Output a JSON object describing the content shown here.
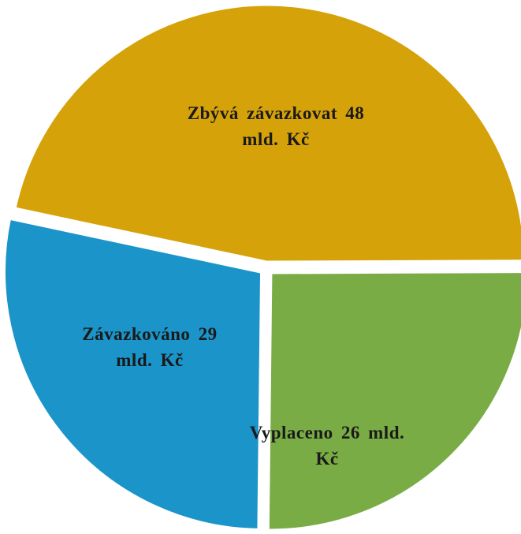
{
  "chart_data": {
    "type": "pie",
    "values": [
      48,
      26,
      29
    ],
    "value_labels": [
      "Zbývá závazkovat 48 mld. Kč",
      "Vyplaceno 26 mld. Kč",
      "Závazkováno 29 mld. Kč"
    ],
    "colors": [
      "#d6a20a",
      "#7aac45",
      "#1b94c9"
    ]
  }
}
